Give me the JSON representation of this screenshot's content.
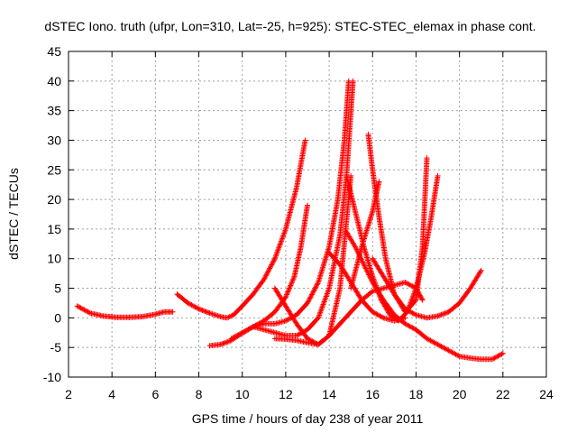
{
  "chart_data": {
    "type": "scatter",
    "title": "dSTEC Iono. truth (ufpr, Lon=310, Lat=-25, h=925): STEC-STEC_elemax in phase cont.",
    "xlabel": "GPS time / hours of day 238 of year 2011",
    "ylabel": "dSTEC  / TECUs",
    "xlim": [
      2,
      24
    ],
    "ylim": [
      -10,
      45
    ],
    "xticks": [
      2,
      4,
      6,
      8,
      10,
      12,
      14,
      16,
      18,
      20,
      22,
      24
    ],
    "yticks": [
      -10,
      -5,
      0,
      5,
      10,
      15,
      20,
      25,
      30,
      35,
      40,
      45
    ],
    "xtick_labels": [
      "2",
      "4",
      "6",
      "8",
      "10",
      "12",
      "14",
      "16",
      "18",
      "20",
      "22",
      "24"
    ],
    "ytick_labels": [
      "-10",
      "-5",
      "0",
      "5",
      "10",
      "15",
      "20",
      "25",
      "30",
      "35",
      "40",
      "45"
    ],
    "grid": true,
    "marker": "+",
    "marker_color": "#ff0000",
    "series": [
      {
        "x": [
          2.4,
          3.0,
          3.6,
          4.2,
          4.8,
          5.4,
          6.0,
          6.4,
          6.8
        ],
        "y": [
          2.0,
          0.8,
          0.3,
          0.1,
          0.1,
          0.2,
          0.6,
          1.0,
          1.0
        ]
      },
      {
        "x": [
          7.0,
          7.5,
          8.0,
          8.5,
          9.0,
          9.3,
          9.6,
          10.0,
          10.5,
          11.0,
          11.5,
          12.0,
          12.5,
          12.9
        ],
        "y": [
          4.0,
          2.5,
          1.5,
          0.8,
          0.2,
          0.0,
          0.5,
          2.0,
          4.0,
          6.5,
          10.0,
          15.0,
          22.0,
          30.0
        ]
      },
      {
        "x": [
          8.5,
          9.0,
          9.5,
          10.0,
          10.5,
          11.0,
          11.5,
          12.0,
          12.4,
          12.7,
          13.0
        ],
        "y": [
          -4.7,
          -4.5,
          -3.8,
          -2.6,
          -1.5,
          -0.5,
          1.0,
          3.5,
          7.0,
          12.0,
          19.0
        ]
      },
      {
        "x": [
          9.5,
          10.0,
          10.5,
          11.0,
          11.5,
          12.0,
          12.5,
          13.0,
          13.5,
          14.0,
          14.4,
          14.7,
          14.9
        ],
        "y": [
          -3.5,
          -2.5,
          -1.5,
          -1.0,
          -1.0,
          -0.5,
          0.5,
          2.5,
          6.0,
          12.0,
          20.0,
          30.0,
          40.0
        ]
      },
      {
        "x": [
          10.5,
          11.0,
          11.5,
          12.0,
          12.5,
          13.0,
          13.5,
          14.0,
          14.5,
          14.8,
          15.1
        ],
        "y": [
          -1.5,
          -2.0,
          -2.5,
          -3.0,
          -3.0,
          -2.0,
          0.0,
          5.0,
          14.0,
          24.0,
          40.0
        ]
      },
      {
        "x": [
          11.5,
          12.0,
          12.5,
          13.0,
          13.5,
          14.0,
          14.5,
          15.0
        ],
        "y": [
          -3.5,
          -3.6,
          -3.8,
          -4.2,
          -4.5,
          -3.0,
          5.0,
          24.0
        ]
      },
      {
        "x": [
          11.5,
          12.0,
          12.5,
          13.0,
          13.5,
          14.0,
          14.5,
          15.0,
          15.5,
          16.0,
          16.5,
          17.0,
          17.5,
          18.0,
          18.3
        ],
        "y": [
          5.0,
          2.0,
          -1.0,
          -3.5,
          -4.5,
          -3.0,
          -1.0,
          1.0,
          3.0,
          4.5,
          5.0,
          5.5,
          6.0,
          5.0,
          3.0
        ]
      },
      {
        "x": [
          14.0,
          14.5,
          15.0,
          15.5,
          16.0,
          16.5,
          17.0,
          17.5
        ],
        "y": [
          11.0,
          9.0,
          6.0,
          3.0,
          1.0,
          0.0,
          -0.5,
          0.0
        ]
      },
      {
        "x": [
          14.8,
          15.2,
          15.6,
          16.0,
          16.5,
          17.0,
          17.5,
          18.0,
          18.5,
          19.0,
          19.5,
          20.0,
          20.5,
          21.0,
          21.5,
          22.0
        ],
        "y": [
          14.5,
          12.0,
          9.0,
          6.0,
          3.0,
          0.5,
          -1.0,
          -2.0,
          -3.5,
          -4.5,
          -5.5,
          -6.5,
          -6.8,
          -7.0,
          -7.0,
          -6.0
        ]
      },
      {
        "x": [
          15.8,
          16.0,
          16.3,
          16.6,
          17.0,
          17.5,
          18.0,
          18.3,
          18.5
        ],
        "y": [
          31.0,
          25.0,
          17.0,
          10.0,
          4.0,
          1.0,
          3.0,
          12.0,
          27.0
        ]
      },
      {
        "x": [
          14.8,
          15.2,
          15.6,
          16.0,
          16.4,
          16.8,
          17.2,
          17.6,
          18.0,
          18.4,
          18.7,
          19.0
        ],
        "y": [
          24.0,
          18.0,
          12.0,
          7.0,
          3.0,
          0.5,
          -0.5,
          1.0,
          5.0,
          11.0,
          17.0,
          24.0
        ]
      },
      {
        "x": [
          15.0,
          15.5,
          16.0,
          16.3
        ],
        "y": [
          5.0,
          12.0,
          18.0,
          23.0
        ]
      },
      {
        "x": [
          16.0,
          16.5,
          17.0,
          17.5,
          18.0,
          18.5,
          19.0,
          19.5,
          20.0,
          20.5,
          21.0
        ],
        "y": [
          10.0,
          7.0,
          4.0,
          1.5,
          0.5,
          0.0,
          0.3,
          1.0,
          2.5,
          5.0,
          8.0
        ]
      }
    ]
  }
}
